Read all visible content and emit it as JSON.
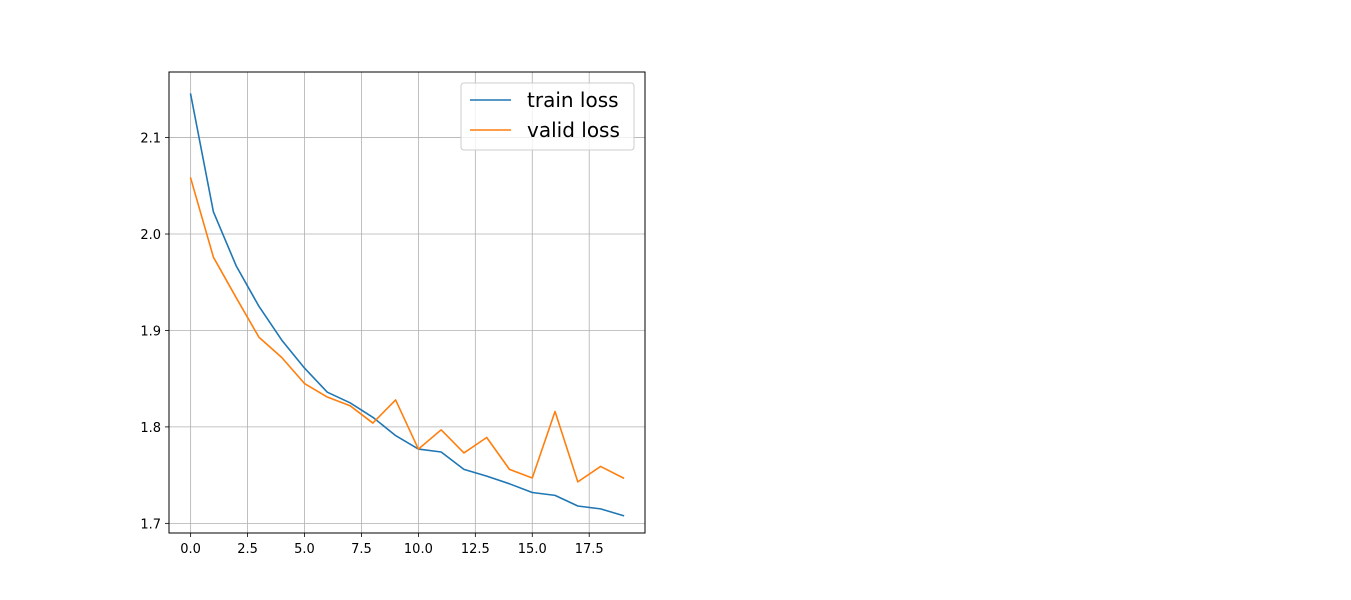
{
  "chart_data": {
    "type": "line",
    "title": "",
    "xlabel": "",
    "ylabel": "",
    "xlim": [
      -0.95,
      19.95
    ],
    "ylim": [
      1.69,
      2.168
    ],
    "xticks": [
      0.0,
      2.5,
      5.0,
      7.5,
      10.0,
      12.5,
      15.0,
      17.5
    ],
    "xtick_labels": [
      "0.0",
      "2.5",
      "5.0",
      "7.5",
      "10.0",
      "12.5",
      "15.0",
      "17.5"
    ],
    "yticks": [
      1.7,
      1.8,
      1.9,
      2.0,
      2.1
    ],
    "ytick_labels": [
      "1.7",
      "1.8",
      "1.9",
      "2.0",
      "2.1"
    ],
    "grid": true,
    "legend_position": "top-right",
    "x": [
      0,
      1,
      2,
      3,
      4,
      5,
      6,
      7,
      8,
      9,
      10,
      11,
      12,
      13,
      14,
      15,
      16,
      17,
      18,
      19
    ],
    "series": [
      {
        "name": "train loss",
        "color": "#1f77b4",
        "values": [
          2.145,
          2.023,
          1.967,
          1.925,
          1.89,
          1.861,
          1.836,
          1.825,
          1.81,
          1.791,
          1.777,
          1.774,
          1.756,
          1.749,
          1.741,
          1.732,
          1.729,
          1.718,
          1.715,
          1.708
        ]
      },
      {
        "name": "valid loss",
        "color": "#ff7f0e",
        "values": [
          2.058,
          1.976,
          1.934,
          1.893,
          1.872,
          1.845,
          1.831,
          1.822,
          1.804,
          1.828,
          1.777,
          1.797,
          1.773,
          1.789,
          1.756,
          1.747,
          1.816,
          1.743,
          1.759,
          1.747
        ]
      }
    ]
  }
}
